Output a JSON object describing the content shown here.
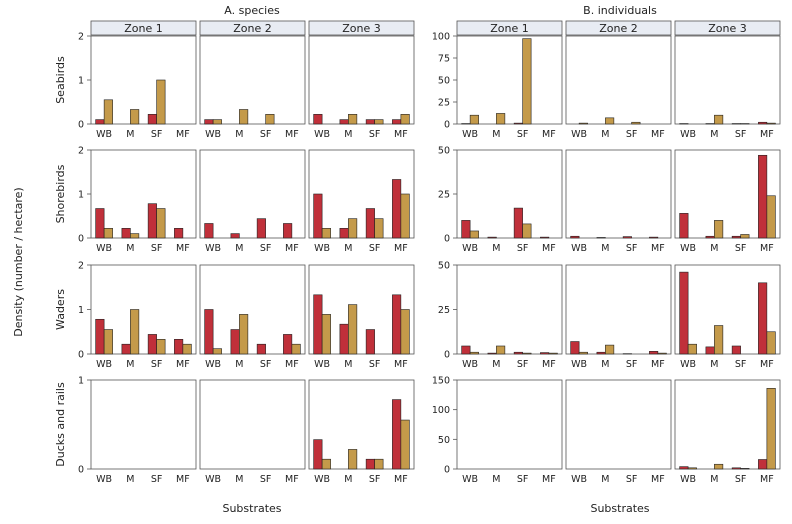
{
  "figure": {
    "ylabel": "Density (number / hectare)",
    "xlabel": "Substrates"
  },
  "colors": {
    "series_a": "#c0303a",
    "series_b": "#c49a4a",
    "strip": "#e8ecf3",
    "frame": "#555555"
  },
  "chart_data": [
    {
      "type": "bar",
      "title": "A. species",
      "zones": [
        "Zone 1",
        "Zone 2",
        "Zone 3"
      ],
      "categories": [
        "WB",
        "M",
        "SF",
        "MF"
      ],
      "xlabel": "Substrates",
      "ylabel": "Density (number / hectare)",
      "rows": [
        {
          "label": "Seabirds",
          "ylim": [
            0,
            2
          ],
          "yticks": [
            0,
            1,
            2
          ],
          "values": [
            [
              [
                0.1,
                0.55
              ],
              [
                0,
                0.33
              ],
              [
                0.22,
                1.0
              ],
              [
                0,
                0
              ]
            ],
            [
              [
                0.1,
                0.1
              ],
              [
                0,
                0.33
              ],
              [
                0,
                0.22
              ],
              [
                0,
                0
              ]
            ],
            [
              [
                0.22,
                0
              ],
              [
                0.1,
                0.22
              ],
              [
                0.1,
                0.1
              ],
              [
                0.1,
                0.22
              ]
            ]
          ]
        },
        {
          "label": "Shorebirds",
          "ylim": [
            0,
            2
          ],
          "yticks": [
            0,
            1,
            2
          ],
          "values": [
            [
              [
                0.67,
                0.22
              ],
              [
                0.22,
                0.1
              ],
              [
                0.78,
                0.67
              ],
              [
                0.22,
                0
              ]
            ],
            [
              [
                0.33,
                0
              ],
              [
                0.1,
                0
              ],
              [
                0.44,
                0
              ],
              [
                0.33,
                0
              ]
            ],
            [
              [
                1.0,
                0.22
              ],
              [
                0.22,
                0.44
              ],
              [
                0.67,
                0.44
              ],
              [
                1.33,
                1.0
              ]
            ]
          ]
        },
        {
          "label": "Waders",
          "ylim": [
            0,
            2
          ],
          "yticks": [
            0,
            1,
            2
          ],
          "values": [
            [
              [
                0.78,
                0.55
              ],
              [
                0.22,
                1.0
              ],
              [
                0.44,
                0.33
              ],
              [
                0.33,
                0.22
              ]
            ],
            [
              [
                1.0,
                0.12
              ],
              [
                0.55,
                0.89
              ],
              [
                0.22,
                0
              ],
              [
                0.44,
                0.22
              ]
            ],
            [
              [
                1.33,
                0.89
              ],
              [
                0.67,
                1.11
              ],
              [
                0.55,
                0
              ],
              [
                1.33,
                1.0
              ]
            ]
          ]
        },
        {
          "label": "Ducks and rails",
          "ylim": [
            0,
            1
          ],
          "yticks": [
            0,
            1
          ],
          "values": [
            [
              [
                0,
                0
              ],
              [
                0,
                0
              ],
              [
                0,
                0
              ],
              [
                0,
                0
              ]
            ],
            [
              [
                0,
                0
              ],
              [
                0,
                0
              ],
              [
                0,
                0
              ],
              [
                0,
                0
              ]
            ],
            [
              [
                0.33,
                0.11
              ],
              [
                0,
                0.22
              ],
              [
                0.11,
                0.11
              ],
              [
                0.78,
                0.55
              ]
            ]
          ]
        }
      ]
    },
    {
      "type": "bar",
      "title": "B. individuals",
      "zones": [
        "Zone 1",
        "Zone 2",
        "Zone 3"
      ],
      "categories": [
        "WB",
        "M",
        "SF",
        "MF"
      ],
      "xlabel": "Substrates",
      "ylabel": "Density (number / hectare)",
      "rows": [
        {
          "label": "Seabirds",
          "ylim": [
            0,
            100
          ],
          "yticks": [
            0,
            25,
            50,
            75,
            100
          ],
          "values": [
            [
              [
                0.5,
                10
              ],
              [
                0,
                12
              ],
              [
                1,
                97
              ],
              [
                0,
                0
              ]
            ],
            [
              [
                0,
                1
              ],
              [
                0,
                7
              ],
              [
                0,
                2
              ],
              [
                0,
                0
              ]
            ],
            [
              [
                0.5,
                0
              ],
              [
                0.5,
                10
              ],
              [
                0.5,
                0.5
              ],
              [
                2,
                1
              ]
            ]
          ]
        },
        {
          "label": "Shorebirds",
          "ylim": [
            0,
            50
          ],
          "yticks": [
            0,
            25,
            50
          ],
          "values": [
            [
              [
                10,
                4
              ],
              [
                0.5,
                0
              ],
              [
                17,
                8
              ],
              [
                0.5,
                0
              ]
            ],
            [
              [
                1,
                0
              ],
              [
                0.3,
                0
              ],
              [
                0.8,
                0
              ],
              [
                0.5,
                0
              ]
            ],
            [
              [
                14,
                0
              ],
              [
                1,
                10
              ],
              [
                1,
                2
              ],
              [
                47,
                24
              ]
            ]
          ]
        },
        {
          "label": "Waders",
          "ylim": [
            0,
            50
          ],
          "yticks": [
            0,
            25,
            50
          ],
          "values": [
            [
              [
                4.5,
                1
              ],
              [
                0.5,
                4.5
              ],
              [
                1,
                0.5
              ],
              [
                0.8,
                0.5
              ]
            ],
            [
              [
                7,
                1
              ],
              [
                1,
                5
              ],
              [
                0.2,
                0
              ],
              [
                1.5,
                0.5
              ]
            ],
            [
              [
                46,
                5.5
              ],
              [
                4,
                16
              ],
              [
                4.5,
                0
              ],
              [
                40,
                12.5
              ]
            ]
          ]
        },
        {
          "label": "Ducks and rails",
          "ylim": [
            0,
            150
          ],
          "yticks": [
            0,
            50,
            100,
            150
          ],
          "values": [
            [
              [
                0,
                0
              ],
              [
                0,
                0
              ],
              [
                0,
                0
              ],
              [
                0,
                0
              ]
            ],
            [
              [
                0,
                0
              ],
              [
                0,
                0
              ],
              [
                0,
                0
              ],
              [
                0,
                0
              ]
            ],
            [
              [
                4,
                2
              ],
              [
                0,
                8
              ],
              [
                2,
                1
              ],
              [
                16,
                136
              ]
            ]
          ]
        }
      ]
    }
  ]
}
